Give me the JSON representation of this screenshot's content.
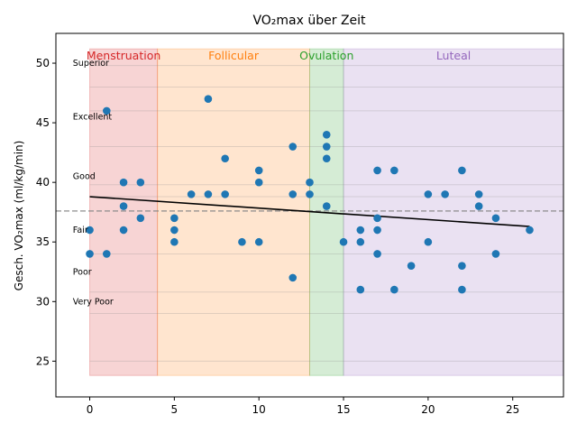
{
  "chart_data": {
    "type": "scatter",
    "title": "VO₂max über Zeit",
    "xlabel": "",
    "ylabel": "Gesch. VO₂max (ml/kg/min)",
    "xlim": [
      -2,
      28
    ],
    "ylim": [
      22,
      52.5
    ],
    "xticks": [
      0,
      5,
      10,
      15,
      20,
      25
    ],
    "yticks": [
      25,
      30,
      35,
      40,
      45,
      50
    ],
    "grid": false,
    "phases": [
      {
        "name": "Menstruation",
        "start": 0,
        "end": 4,
        "color": "#d62728"
      },
      {
        "name": "Follicular",
        "start": 4,
        "end": 13,
        "color": "#ff7f0e"
      },
      {
        "name": "Ovulation",
        "start": 13,
        "end": 15,
        "color": "#2ca02c"
      },
      {
        "name": "Luteal",
        "start": 15,
        "end": 28,
        "color": "#9467bd"
      }
    ],
    "phase_y_range": [
      23.8,
      51.2
    ],
    "categories": [
      {
        "name": "Superior",
        "y": 50.0
      },
      {
        "name": "Excellent",
        "y": 45.5
      },
      {
        "name": "Good",
        "y": 40.5
      },
      {
        "name": "Fair",
        "y": 36.0
      },
      {
        "name": "Poor",
        "y": 32.5
      },
      {
        "name": "Very Poor",
        "y": 30.0
      }
    ],
    "band_lines": [
      49.8,
      48,
      46,
      43,
      39.8,
      38.8,
      34,
      30.8,
      29,
      25
    ],
    "mean_line": 37.6,
    "trend": {
      "x0": 0,
      "y0": 38.8,
      "x1": 26,
      "y1": 36.3
    },
    "point_color": "#1f77b4",
    "trend_color": "#000000",
    "points": [
      [
        0,
        36
      ],
      [
        0,
        34
      ],
      [
        1,
        46
      ],
      [
        1,
        34
      ],
      [
        2,
        40
      ],
      [
        2,
        38
      ],
      [
        2,
        36
      ],
      [
        3,
        40
      ],
      [
        3,
        37
      ],
      [
        5,
        37
      ],
      [
        5,
        36
      ],
      [
        5,
        35
      ],
      [
        6,
        39
      ],
      [
        7,
        47
      ],
      [
        7,
        39
      ],
      [
        8,
        42
      ],
      [
        8,
        39
      ],
      [
        9,
        35
      ],
      [
        10,
        41
      ],
      [
        10,
        40
      ],
      [
        10,
        35
      ],
      [
        12,
        43
      ],
      [
        12,
        39
      ],
      [
        12,
        32
      ],
      [
        13,
        40
      ],
      [
        13,
        39
      ],
      [
        14,
        44
      ],
      [
        14,
        43
      ],
      [
        14,
        42
      ],
      [
        14,
        38
      ],
      [
        15,
        35
      ],
      [
        16,
        36
      ],
      [
        16,
        35
      ],
      [
        16,
        31
      ],
      [
        17,
        41
      ],
      [
        17,
        37
      ],
      [
        17,
        36
      ],
      [
        17,
        34
      ],
      [
        18,
        41
      ],
      [
        18,
        31
      ],
      [
        19,
        33
      ],
      [
        20,
        39
      ],
      [
        20,
        35
      ],
      [
        21,
        39
      ],
      [
        22,
        41
      ],
      [
        22,
        33
      ],
      [
        22,
        31
      ],
      [
        23,
        39
      ],
      [
        23,
        38
      ],
      [
        24,
        37
      ],
      [
        24,
        34
      ],
      [
        26,
        36
      ]
    ]
  }
}
